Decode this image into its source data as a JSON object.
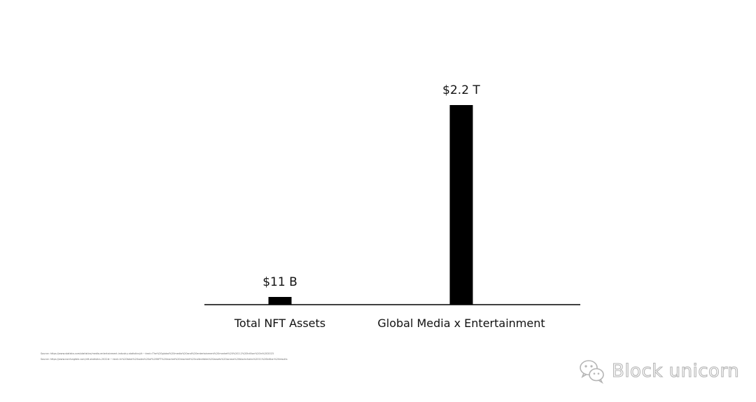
{
  "chart_data": {
    "type": "bar",
    "title": "",
    "xlabel": "",
    "ylabel": "",
    "unit": "USD (billions)",
    "categories": [
      "Total NFT Assets",
      "Global Media x Entertainment"
    ],
    "values": [
      11,
      2200
    ],
    "value_labels": [
      "$11 B",
      "$2.2 T"
    ],
    "ylim": [
      0,
      2400
    ],
    "grid": false,
    "legend": "none",
    "bar_color": "#000000",
    "axis_color": "#000000"
  },
  "sources": {
    "line1": "Source: https://www.statista.com/statistics/media-entertainment-industry-statistics/#:~:text=The%20global%20media%20and%20entertainment%20market%20%202.2%20trillion%20in%202023",
    "line2": "Source: https://www.nonfungible.com/nft-statistics-2022#:~:text=In%20total%20sales%20of%20NFT%20market%20reached%20collectibles%20assets%20across%20blockchains%2011%20billion%20results"
  },
  "watermark": {
    "text": "Block unicorn",
    "icon": "wechat-icon"
  }
}
